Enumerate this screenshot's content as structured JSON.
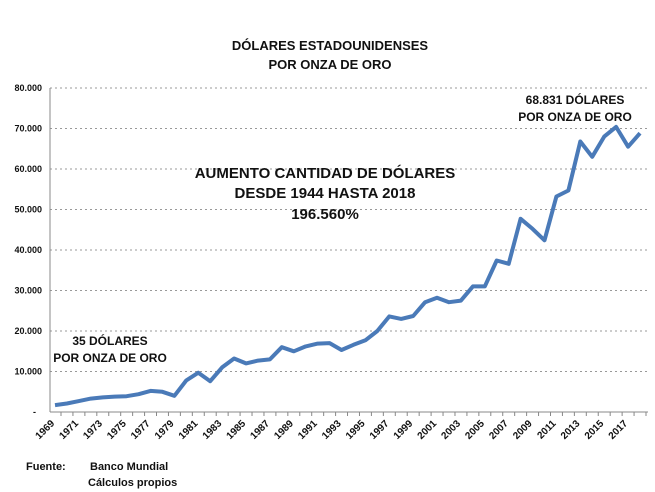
{
  "chart_data": {
    "type": "line",
    "title": [
      "DÓLARES ESTADOUNIDENSES",
      "POR ONZA DE ORO"
    ],
    "xlabel": "",
    "ylabel": "",
    "ylim": [
      0,
      80000
    ],
    "y_ticks": [
      "-",
      "10.000",
      "20.000",
      "30.000",
      "40.000",
      "50.000",
      "60.000",
      "70.000",
      "80.000"
    ],
    "grid": "horizontal dotted",
    "line_color": "#4a7ab8",
    "x": [
      1969,
      1970,
      1971,
      1972,
      1973,
      1974,
      1975,
      1976,
      1977,
      1978,
      1979,
      1980,
      1981,
      1982,
      1983,
      1984,
      1985,
      1986,
      1987,
      1988,
      1989,
      1990,
      1991,
      1992,
      1993,
      1994,
      1995,
      1996,
      1997,
      1998,
      1999,
      2000,
      2001,
      2002,
      2003,
      2004,
      2005,
      2006,
      2007,
      2008,
      2009,
      2010,
      2011,
      2012,
      2013,
      2014,
      2015,
      2016,
      2017,
      2018
    ],
    "x_tick_labels": [
      "1969",
      "1971",
      "1973",
      "1975",
      "1977",
      "1979",
      "1981",
      "1983",
      "1985",
      "1987",
      "1989",
      "1991",
      "1993",
      "1995",
      "1997",
      "1999",
      "2001",
      "2003",
      "2005",
      "2007",
      "2009",
      "2011",
      "2013",
      "2015",
      "2017"
    ],
    "values": [
      1700,
      2100,
      2700,
      3300,
      3600,
      3800,
      3900,
      4400,
      5200,
      5000,
      4000,
      7800,
      9700,
      7600,
      11000,
      13200,
      12000,
      12700,
      13000,
      16000,
      15000,
      16200,
      16900,
      17000,
      15300,
      16600,
      17700,
      20000,
      23600,
      23000,
      23700,
      27100,
      28200,
      27100,
      27500,
      31000,
      31000,
      37400,
      36600,
      47700,
      45200,
      42400,
      53200,
      54700,
      66800,
      63000,
      68000,
      70400,
      65500,
      68831
    ],
    "annotations": {
      "start": [
        "35 DÓLARES",
        "POR ONZA DE ORO"
      ],
      "end": [
        "68.831 DÓLARES",
        "POR ONZA DE ORO"
      ],
      "center": [
        "AUMENTO CANTIDAD DE DÓLARES",
        "DESDE 1944 HASTA 2018",
        "196.560%"
      ]
    }
  },
  "footer": {
    "source_label": "Fuente:",
    "sources": [
      "Banco Mundial",
      "Cálculos propios"
    ]
  }
}
